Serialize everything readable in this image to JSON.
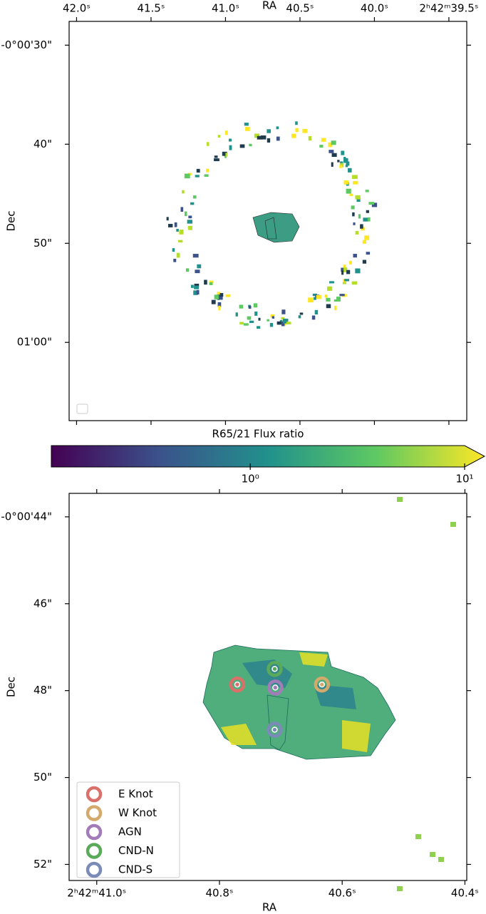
{
  "chart_data": [
    {
      "type": "image",
      "x_label": "RA",
      "y_label": "Dec",
      "xaxis_position": "top",
      "xlim": [
        39.38,
        42.05
      ],
      "invert_x": true,
      "ylim": [
        27.6,
        67.9
      ],
      "invert_y": true,
      "xticks": [
        {
          "value": 42.0,
          "label": "42.0ˢ"
        },
        {
          "value": 41.5,
          "label": "41.5ˢ"
        },
        {
          "value": 41.0,
          "label": "41.0ˢ"
        },
        {
          "value": 40.5,
          "label": "40.5ˢ"
        },
        {
          "value": 40.0,
          "label": "40.0ˢ"
        },
        {
          "value": 39.5,
          "label": "2ʰ42ᵐ39.5ˢ"
        }
      ],
      "yticks": [
        {
          "value": 30,
          "label": "-0°00'30\""
        },
        {
          "value": 40,
          "label": "40\""
        },
        {
          "value": 50,
          "label": "50\""
        },
        {
          "value": 60,
          "label": "01'00\""
        }
      ]
    },
    {
      "type": "colorbar",
      "label": "R65/21 Flux ratio",
      "log_scale": true,
      "extend": "max",
      "colormap": "viridis",
      "xlim": [
        0.118,
        10
      ],
      "xticks": [
        {
          "value": 1,
          "label": "10⁰"
        },
        {
          "value": 10,
          "label": "10¹"
        }
      ]
    },
    {
      "type": "scatter",
      "x_label": "RA",
      "y_label": "Dec",
      "xaxis_position": "bottom",
      "legend": "lower left",
      "xlim": [
        40.397,
        41.045
      ],
      "invert_x": true,
      "ylim": [
        43.46,
        52.37
      ],
      "invert_y": true,
      "xticks": [
        {
          "value": 41.0,
          "label": "2ʰ42ᵐ41.0ˢ"
        },
        {
          "value": 40.8,
          "label": "40.8ˢ"
        },
        {
          "value": 40.6,
          "label": "40.6ˢ"
        },
        {
          "value": 40.4,
          "label": "40.4ˢ"
        }
      ],
      "yticks": [
        {
          "value": 44,
          "label": "-0°00'44\""
        },
        {
          "value": 46,
          "label": "46\""
        },
        {
          "value": 48,
          "label": "48\""
        },
        {
          "value": 50,
          "label": "50\""
        },
        {
          "value": 52,
          "label": "52\""
        }
      ],
      "series": [
        {
          "name": "E Knot",
          "color": "#d9706a",
          "x": [
            40.771
          ],
          "values": [
            47.86
          ]
        },
        {
          "name": "W Knot",
          "color": "#d4aa6c",
          "x": [
            40.633
          ],
          "values": [
            47.86
          ]
        },
        {
          "name": "AGN",
          "color": "#a27bb9",
          "x": [
            40.709
          ],
          "values": [
            47.93
          ]
        },
        {
          "name": "CND-N",
          "color": "#5aaa5a",
          "x": [
            40.71
          ],
          "values": [
            47.5
          ]
        },
        {
          "name": "CND-S",
          "color": "#7b8bb8",
          "x": [
            40.71
          ],
          "values": [
            48.9
          ]
        }
      ]
    }
  ]
}
